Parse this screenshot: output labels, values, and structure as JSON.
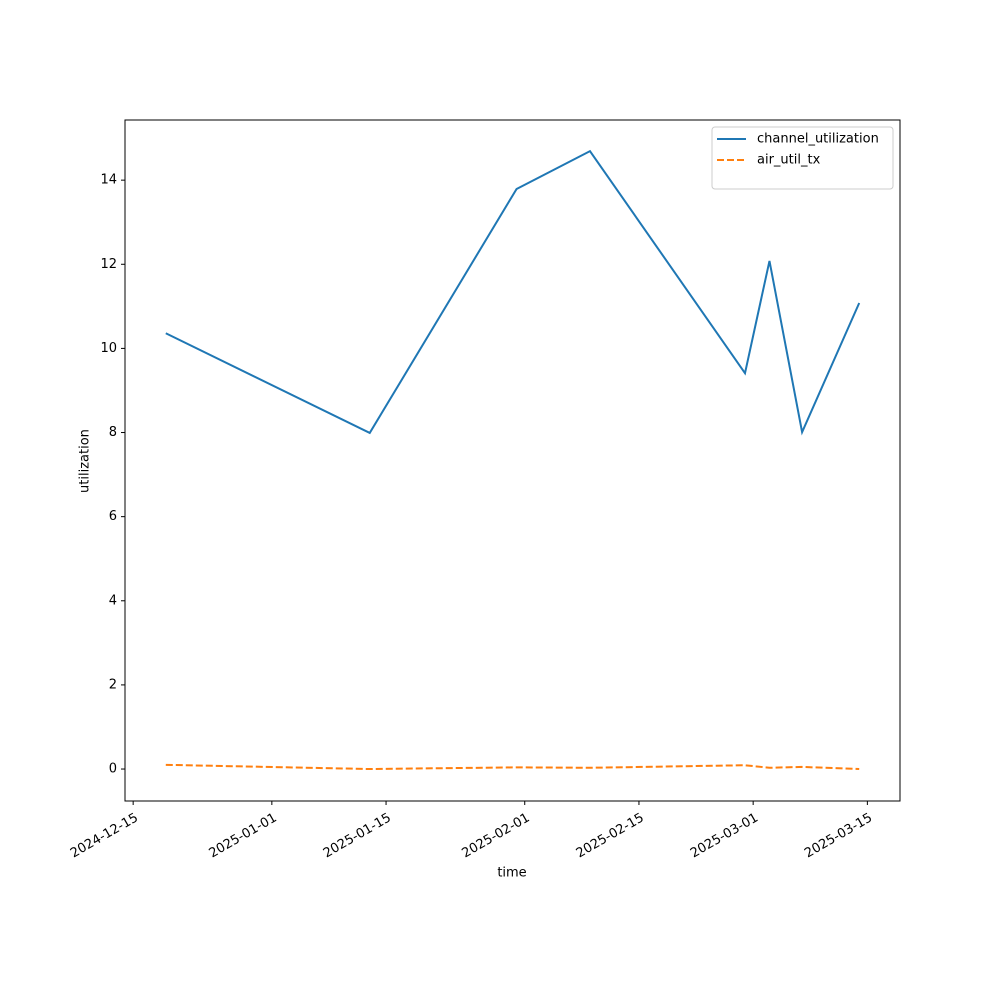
{
  "chart_data": {
    "type": "line",
    "x_label": "time",
    "y_label": "utilization",
    "x": [
      "2024-12-19",
      "2025-01-13",
      "2025-01-31",
      "2025-02-09",
      "2025-02-28",
      "2025-03-03",
      "2025-03-07",
      "2025-03-14"
    ],
    "series": [
      {
        "name": "channel_utilization",
        "color": "#1f77b4",
        "dash": "solid",
        "values": [
          10.36,
          7.99,
          13.79,
          14.69,
          9.41,
          12.08,
          8.01,
          11.08
        ]
      },
      {
        "name": "air_util_tx",
        "color": "#ff7f0e",
        "dash": "dashed",
        "values": [
          0.1,
          0.0,
          0.04,
          0.03,
          0.09,
          0.03,
          0.05,
          0.0
        ]
      }
    ],
    "xlim": [
      "2024-12-14",
      "2025-03-19"
    ],
    "xticks": [
      "2024-12-15",
      "2025-01-01",
      "2025-01-15",
      "2025-02-01",
      "2025-02-15",
      "2025-03-01",
      "2025-03-15"
    ],
    "ylim": [
      -0.76,
      15.43
    ],
    "yticks": [
      0,
      2,
      4,
      6,
      8,
      10,
      12,
      14
    ],
    "grid": false,
    "legend": "upper right"
  }
}
